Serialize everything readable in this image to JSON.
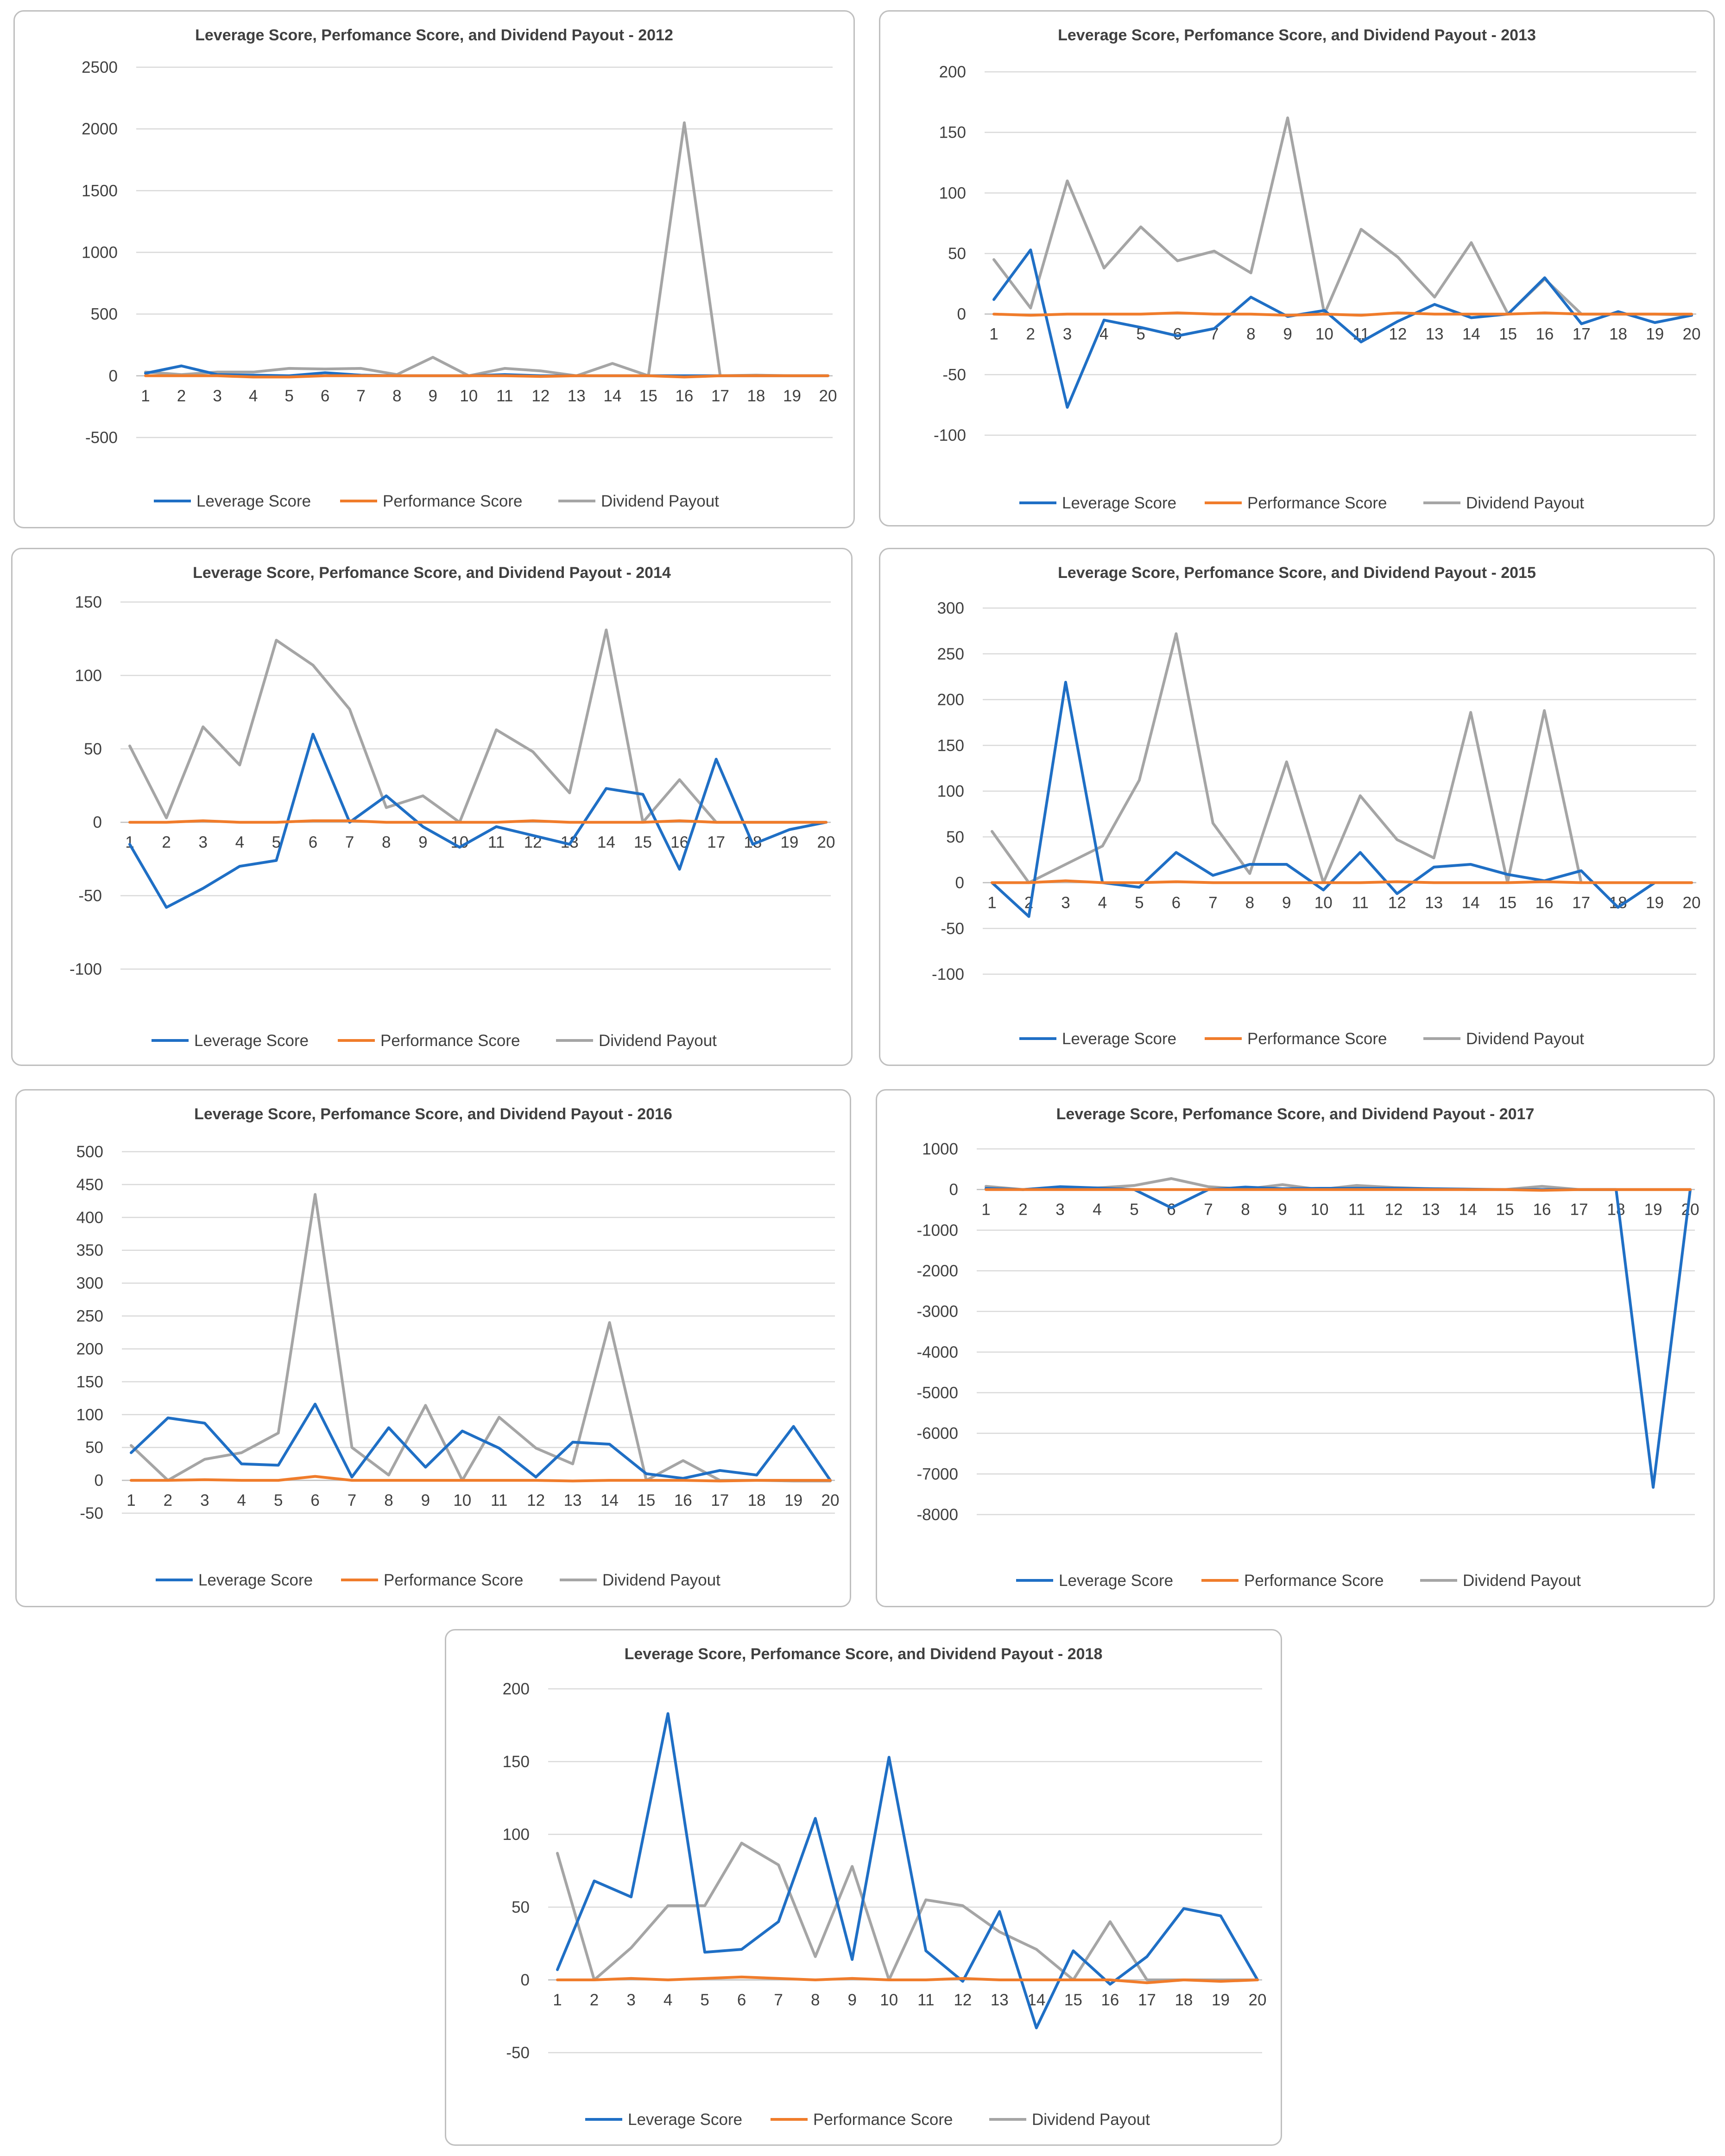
{
  "colors": {
    "leverage": "#1f6fc5",
    "performance": "#f07c2b",
    "dividend": "#a5a5a5"
  },
  "chart_data": [
    {
      "type": "line",
      "title": "Leverage Score, Perfomance Score, and Dividend Payout - 2012",
      "categories": [
        "1",
        "2",
        "3",
        "4",
        "5",
        "6",
        "7",
        "8",
        "9",
        "10",
        "11",
        "12",
        "13",
        "14",
        "15",
        "16",
        "17",
        "18",
        "19",
        "20"
      ],
      "ylim": [
        -500,
        2500
      ],
      "yticks": [
        -500,
        0,
        500,
        1000,
        1500,
        2000,
        2500
      ],
      "grid": true,
      "legend": "bottom",
      "series": [
        {
          "name": "Leverage Score",
          "values": [
            20,
            80,
            10,
            5,
            0,
            25,
            5,
            0,
            0,
            0,
            10,
            0,
            0,
            0,
            0,
            0,
            0,
            0,
            0,
            0
          ]
        },
        {
          "name": "Performance Score",
          "values": [
            0,
            0,
            0,
            -10,
            -10,
            0,
            0,
            0,
            0,
            0,
            0,
            -5,
            0,
            0,
            0,
            -10,
            0,
            0,
            0,
            0
          ]
        },
        {
          "name": "Dividend Payout",
          "values": [
            30,
            10,
            30,
            30,
            60,
            55,
            60,
            10,
            150,
            0,
            60,
            40,
            0,
            100,
            0,
            2050,
            0,
            5,
            0,
            0
          ]
        }
      ]
    },
    {
      "type": "line",
      "title": "Leverage Score, Perfomance Score, and Dividend Payout - 2013",
      "categories": [
        "1",
        "2",
        "3",
        "4",
        "5",
        "6",
        "7",
        "8",
        "9",
        "10",
        "11",
        "12",
        "13",
        "14",
        "15",
        "16",
        "17",
        "18",
        "19",
        "20"
      ],
      "ylim": [
        -100,
        200
      ],
      "yticks": [
        -100,
        -50,
        0,
        50,
        100,
        150,
        200
      ],
      "grid": true,
      "legend": "bottom",
      "series": [
        {
          "name": "Leverage Score",
          "values": [
            12,
            53,
            -77,
            -5,
            -11,
            -18,
            -12,
            14,
            -2,
            3,
            -23,
            -6,
            8,
            -3,
            0,
            30,
            -8,
            2,
            -7,
            -1
          ]
        },
        {
          "name": "Performance Score",
          "values": [
            0,
            -1,
            0,
            0,
            0,
            1,
            0,
            0,
            -1,
            0,
            -1,
            1,
            0,
            0,
            0,
            1,
            0,
            0,
            0,
            0
          ]
        },
        {
          "name": "Dividend Payout",
          "values": [
            45,
            5,
            110,
            38,
            72,
            44,
            52,
            34,
            162,
            0,
            70,
            47,
            14,
            59,
            0,
            29,
            0,
            0,
            0,
            -1
          ]
        }
      ]
    },
    {
      "type": "line",
      "title": "Leverage Score, Perfomance Score, and Dividend Payout - 2014",
      "categories": [
        "1",
        "2",
        "3",
        "4",
        "5",
        "6",
        "7",
        "8",
        "9",
        "10",
        "11",
        "12",
        "13",
        "14",
        "15",
        "16",
        "17",
        "18",
        "19",
        "20"
      ],
      "ylim": [
        -100,
        150
      ],
      "yticks": [
        -100,
        -50,
        0,
        50,
        100,
        150
      ],
      "grid": true,
      "legend": "bottom",
      "series": [
        {
          "name": "Leverage Score",
          "values": [
            -15,
            -58,
            -45,
            -30,
            -26,
            60,
            0,
            18,
            -3,
            -17,
            -3,
            -9,
            -15,
            23,
            19,
            -32,
            43,
            -15,
            -5,
            0
          ]
        },
        {
          "name": "Performance Score",
          "values": [
            0,
            0,
            1,
            0,
            0,
            1,
            1,
            0,
            0,
            0,
            0,
            1,
            0,
            0,
            0,
            1,
            0,
            0,
            0,
            0
          ]
        },
        {
          "name": "Dividend Payout",
          "values": [
            52,
            3,
            65,
            39,
            124,
            107,
            77,
            10,
            18,
            0,
            63,
            48,
            20,
            131,
            0,
            29,
            0,
            0,
            0,
            0
          ]
        }
      ]
    },
    {
      "type": "line",
      "title": "Leverage Score, Perfomance Score, and Dividend Payout - 2015",
      "categories": [
        "1",
        "2",
        "3",
        "4",
        "5",
        "6",
        "7",
        "8",
        "9",
        "10",
        "11",
        "12",
        "13",
        "14",
        "15",
        "16",
        "17",
        "18",
        "19",
        "20"
      ],
      "ylim": [
        -100,
        300
      ],
      "yticks": [
        -100,
        -50,
        0,
        50,
        100,
        150,
        200,
        250,
        300
      ],
      "grid": true,
      "legend": "bottom",
      "series": [
        {
          "name": "Leverage Score",
          "values": [
            0,
            -37,
            219,
            0,
            -5,
            33,
            8,
            20,
            20,
            -8,
            33,
            -12,
            17,
            20,
            9,
            2,
            13,
            -27,
            0,
            0
          ]
        },
        {
          "name": "Performance Score",
          "values": [
            0,
            0,
            2,
            0,
            0,
            1,
            0,
            0,
            0,
            0,
            0,
            1,
            0,
            0,
            0,
            1,
            0,
            0,
            0,
            0
          ]
        },
        {
          "name": "Dividend Payout",
          "values": [
            56,
            0,
            20,
            40,
            112,
            272,
            65,
            10,
            132,
            0,
            95,
            47,
            27,
            186,
            0,
            188,
            0,
            0,
            0,
            0
          ]
        }
      ]
    },
    {
      "type": "line",
      "title": "Leverage Score, Perfomance Score, and Dividend Payout - 2016",
      "categories": [
        "1",
        "2",
        "3",
        "4",
        "5",
        "6",
        "7",
        "8",
        "9",
        "10",
        "11",
        "12",
        "13",
        "14",
        "15",
        "16",
        "17",
        "18",
        "19",
        "20"
      ],
      "ylim": [
        -50,
        500
      ],
      "yticks": [
        -50,
        0,
        50,
        100,
        150,
        200,
        250,
        300,
        350,
        400,
        450,
        500
      ],
      "grid": true,
      "legend": "bottom",
      "series": [
        {
          "name": "Leverage Score",
          "values": [
            42,
            95,
            87,
            25,
            23,
            116,
            5,
            80,
            20,
            75,
            49,
            5,
            58,
            55,
            10,
            3,
            15,
            8,
            82,
            0
          ]
        },
        {
          "name": "Performance Score",
          "values": [
            0,
            0,
            1,
            0,
            0,
            6,
            0,
            0,
            0,
            0,
            0,
            0,
            -1,
            0,
            0,
            0,
            -1,
            0,
            0,
            0
          ]
        },
        {
          "name": "Dividend Payout",
          "values": [
            53,
            0,
            32,
            42,
            72,
            435,
            50,
            8,
            114,
            0,
            96,
            49,
            25,
            240,
            0,
            30,
            0,
            0,
            -1,
            -1
          ]
        }
      ]
    },
    {
      "type": "line",
      "title": "Leverage Score, Perfomance Score, and Dividend Payout - 2017",
      "categories": [
        "1",
        "2",
        "3",
        "4",
        "5",
        "6",
        "7",
        "8",
        "9",
        "10",
        "11",
        "12",
        "13",
        "14",
        "15",
        "16",
        "17",
        "18",
        "19",
        "20"
      ],
      "ylim": [
        -8000,
        1000
      ],
      "yticks": [
        -8000,
        -7000,
        -6000,
        -5000,
        -4000,
        -3000,
        -2000,
        -1000,
        0,
        1000
      ],
      "grid": true,
      "legend": "bottom",
      "series": [
        {
          "name": "Leverage Score",
          "values": [
            30,
            0,
            70,
            40,
            0,
            -450,
            0,
            60,
            20,
            30,
            30,
            30,
            20,
            10,
            0,
            0,
            0,
            0,
            -7330,
            0
          ]
        },
        {
          "name": "Performance Score",
          "values": [
            0,
            0,
            0,
            0,
            0,
            0,
            0,
            0,
            0,
            0,
            0,
            0,
            0,
            0,
            0,
            -20,
            0,
            0,
            0,
            0
          ]
        },
        {
          "name": "Dividend Payout",
          "values": [
            80,
            0,
            60,
            40,
            100,
            270,
            70,
            10,
            120,
            0,
            100,
            50,
            20,
            0,
            0,
            80,
            0,
            0,
            0,
            0
          ]
        }
      ]
    },
    {
      "type": "line",
      "title": "Leverage Score, Perfomance Score, and Dividend Payout - 2018",
      "categories": [
        "1",
        "2",
        "3",
        "4",
        "5",
        "6",
        "7",
        "8",
        "9",
        "10",
        "11",
        "12",
        "13",
        "14",
        "15",
        "16",
        "17",
        "18",
        "19",
        "20"
      ],
      "ylim": [
        -50,
        200
      ],
      "yticks": [
        -50,
        0,
        50,
        100,
        150,
        200
      ],
      "grid": true,
      "legend": "bottom",
      "series": [
        {
          "name": "Leverage Score",
          "values": [
            7,
            68,
            57,
            183,
            19,
            21,
            40,
            111,
            14,
            153,
            20,
            -1,
            47,
            -33,
            20,
            -3,
            16,
            49,
            44,
            0
          ]
        },
        {
          "name": "Performance Score",
          "values": [
            0,
            0,
            1,
            0,
            1,
            2,
            1,
            0,
            1,
            0,
            0,
            1,
            0,
            0,
            0,
            0,
            -2,
            0,
            -1,
            0
          ]
        },
        {
          "name": "Dividend Payout",
          "values": [
            87,
            0,
            22,
            51,
            51,
            94,
            79,
            16,
            78,
            0,
            55,
            51,
            33,
            21,
            0,
            40,
            0,
            0,
            0,
            0
          ]
        }
      ]
    }
  ]
}
